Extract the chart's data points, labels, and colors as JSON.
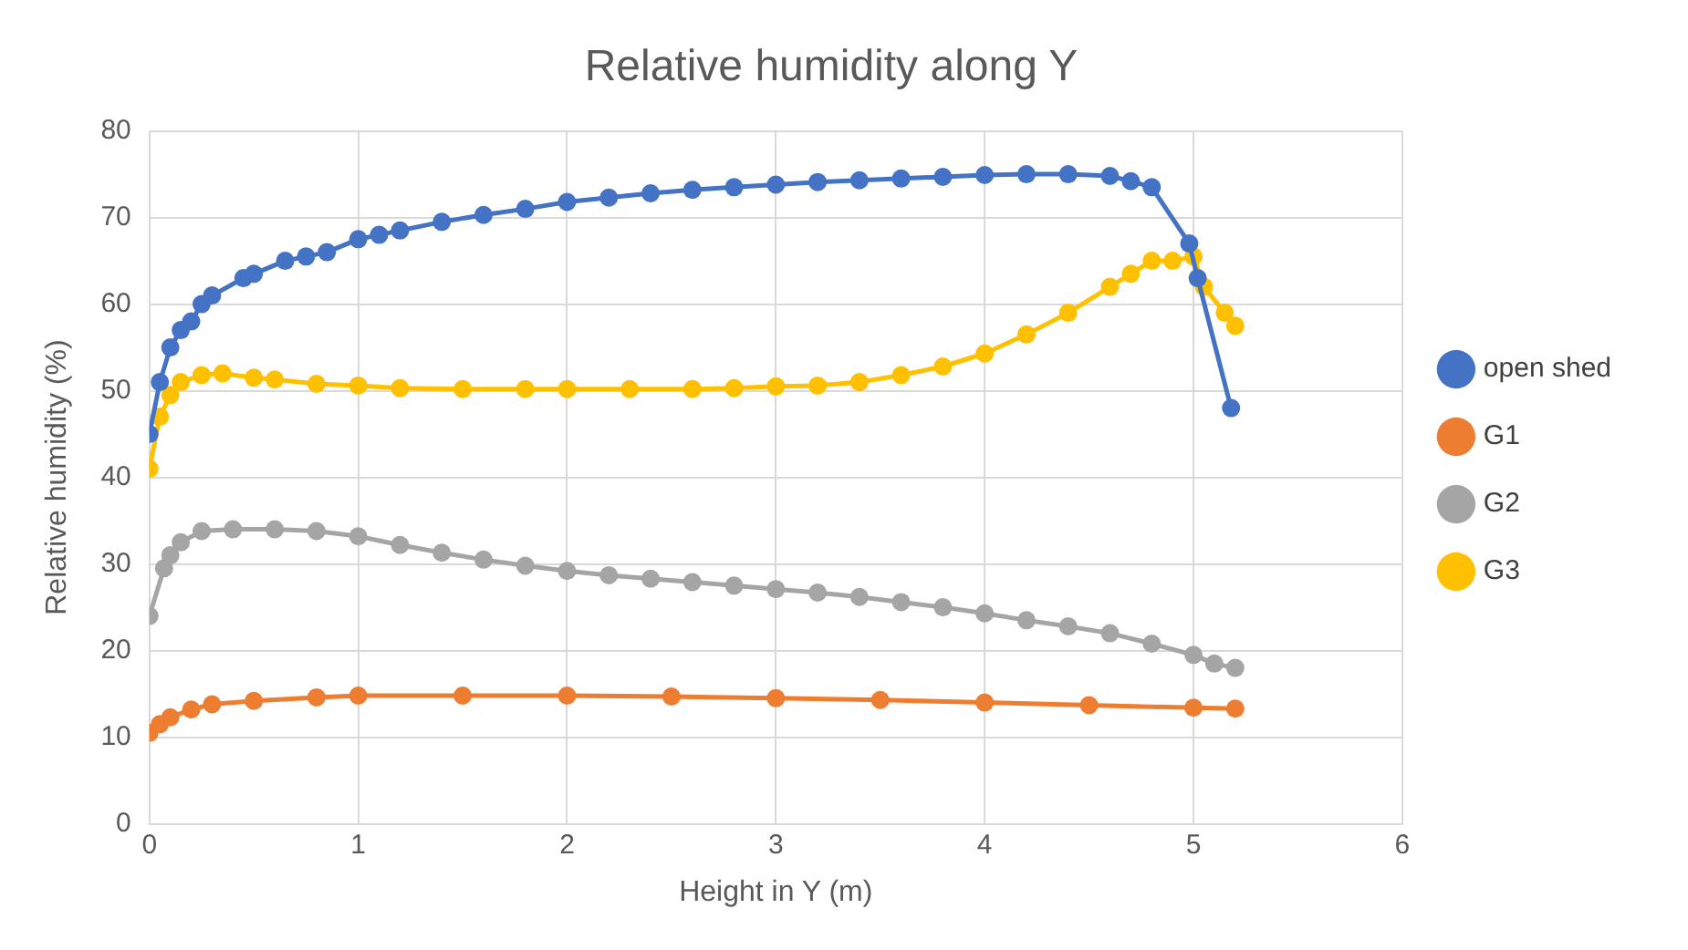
{
  "chart_data": {
    "type": "line",
    "title": "Relative humidity along Y",
    "xlabel": "Height in Y (m)",
    "ylabel": "Relative humidity (%)",
    "xlim": [
      0,
      6
    ],
    "xticks": [
      0,
      1,
      2,
      3,
      4,
      5,
      6
    ],
    "ylim": [
      0,
      80
    ],
    "yticks": [
      0,
      10,
      20,
      30,
      40,
      50,
      60,
      70,
      80
    ],
    "grid": true,
    "legend": "right",
    "marker": "circle",
    "line_style": "solid",
    "series": [
      {
        "name": "open shed",
        "color": "#4472c4",
        "x": [
          0,
          0.05,
          0.1,
          0.15,
          0.2,
          0.25,
          0.3,
          0.45,
          0.5,
          0.65,
          0.75,
          0.85,
          1.0,
          1.1,
          1.2,
          1.4,
          1.6,
          1.8,
          2.0,
          2.2,
          2.4,
          2.6,
          2.8,
          3.0,
          3.2,
          3.4,
          3.6,
          3.8,
          4.0,
          4.2,
          4.4,
          4.6,
          4.7,
          4.8,
          4.98,
          5.02,
          5.18
        ],
        "values": [
          45,
          51,
          55,
          57,
          58,
          60,
          61,
          63,
          63.5,
          65,
          65.5,
          66,
          67.5,
          68,
          68.5,
          69.5,
          70.3,
          71,
          71.8,
          72.3,
          72.8,
          73.2,
          73.5,
          73.8,
          74.1,
          74.3,
          74.5,
          74.7,
          74.9,
          75,
          75,
          74.8,
          74.2,
          73.5,
          67,
          63,
          48
        ]
      },
      {
        "name": "G1",
        "color": "#ed7d31",
        "x": [
          0,
          0.05,
          0.1,
          0.2,
          0.3,
          0.5,
          0.8,
          1.0,
          1.5,
          2.0,
          2.5,
          3.0,
          3.5,
          4.0,
          4.5,
          5.0,
          5.2
        ],
        "values": [
          10.5,
          11.5,
          12.3,
          13.2,
          13.8,
          14.2,
          14.6,
          14.8,
          14.8,
          14.8,
          14.7,
          14.5,
          14.3,
          14,
          13.7,
          13.4,
          13.3
        ]
      },
      {
        "name": "G2",
        "color": "#a5a5a5",
        "x": [
          0,
          0.07,
          0.1,
          0.15,
          0.25,
          0.4,
          0.6,
          0.8,
          1.0,
          1.2,
          1.4,
          1.6,
          1.8,
          2.0,
          2.2,
          2.4,
          2.6,
          2.8,
          3.0,
          3.2,
          3.4,
          3.6,
          3.8,
          4.0,
          4.2,
          4.4,
          4.6,
          4.8,
          5.0,
          5.1,
          5.2
        ],
        "values": [
          24,
          29.5,
          31,
          32.5,
          33.8,
          34,
          34,
          33.8,
          33.2,
          32.2,
          31.3,
          30.5,
          29.8,
          29.2,
          28.7,
          28.3,
          27.9,
          27.5,
          27.1,
          26.7,
          26.2,
          25.6,
          25,
          24.3,
          23.5,
          22.8,
          22,
          20.8,
          19.5,
          18.5,
          18
        ]
      },
      {
        "name": "G3",
        "color": "#ffc000",
        "x": [
          0,
          0.05,
          0.1,
          0.15,
          0.25,
          0.35,
          0.5,
          0.6,
          0.8,
          1.0,
          1.2,
          1.5,
          1.8,
          2.0,
          2.3,
          2.6,
          2.8,
          3.0,
          3.2,
          3.4,
          3.6,
          3.8,
          4.0,
          4.2,
          4.4,
          4.6,
          4.7,
          4.8,
          4.9,
          5.0,
          5.05,
          5.15,
          5.2
        ],
        "values": [
          41,
          47,
          49.5,
          51,
          51.8,
          52,
          51.5,
          51.3,
          50.8,
          50.6,
          50.3,
          50.2,
          50.2,
          50.2,
          50.2,
          50.2,
          50.3,
          50.5,
          50.6,
          51,
          51.8,
          52.8,
          54.3,
          56.5,
          59,
          62,
          63.5,
          65,
          65,
          65.5,
          62,
          59,
          57.5
        ]
      }
    ]
  }
}
